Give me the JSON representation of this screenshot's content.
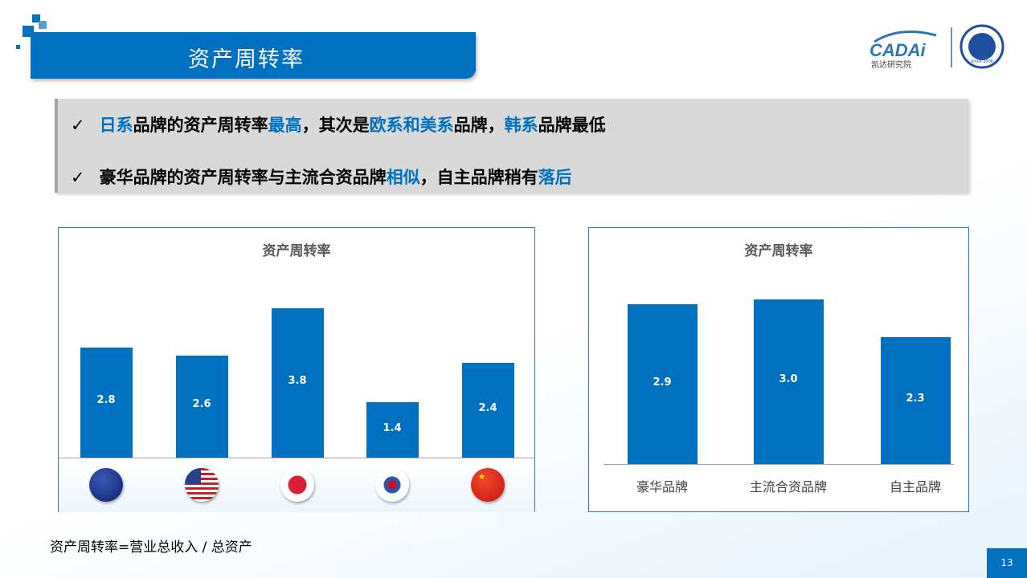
{
  "header": {
    "title": "资产周转率"
  },
  "logo": {
    "brand": "CADAi",
    "subtitle": "凯达研究院",
    "seal_text": "Since 2006"
  },
  "summary": {
    "check_icon": "✓",
    "line1": [
      {
        "t": "日系",
        "h": true
      },
      {
        "t": "品牌的资产周转率",
        "h": false
      },
      {
        "t": "最高",
        "h": true
      },
      {
        "t": "，其次是",
        "h": false
      },
      {
        "t": "欧系和美系",
        "h": true
      },
      {
        "t": "品牌，",
        "h": false
      },
      {
        "t": "韩系",
        "h": true
      },
      {
        "t": "品牌最低",
        "h": false
      }
    ],
    "line2": [
      {
        "t": "豪华品牌的资产周转率与主流合资品牌",
        "h": false
      },
      {
        "t": "相似",
        "h": true
      },
      {
        "t": "，自主品牌稍有",
        "h": false
      },
      {
        "t": "落后",
        "h": true
      }
    ]
  },
  "chart_data": [
    {
      "type": "bar",
      "title": "资产周转率",
      "categories": [
        "欧系",
        "美系",
        "日系",
        "韩系",
        "中系"
      ],
      "category_icons": [
        "eu-flag",
        "us-flag",
        "japan-flag",
        "korea-flag",
        "china-flag"
      ],
      "values": [
        2.8,
        2.6,
        3.8,
        1.4,
        2.4
      ],
      "color": "#0070c0"
    },
    {
      "type": "bar",
      "title": "资产周转率",
      "categories": [
        "豪华品牌",
        "主流合资品牌",
        "自主品牌"
      ],
      "values": [
        2.9,
        3.0,
        2.3
      ],
      "color": "#0070c0"
    }
  ],
  "footer": {
    "formula": "资产周转率=营业总收入 / 总资产",
    "page_number": "13"
  }
}
